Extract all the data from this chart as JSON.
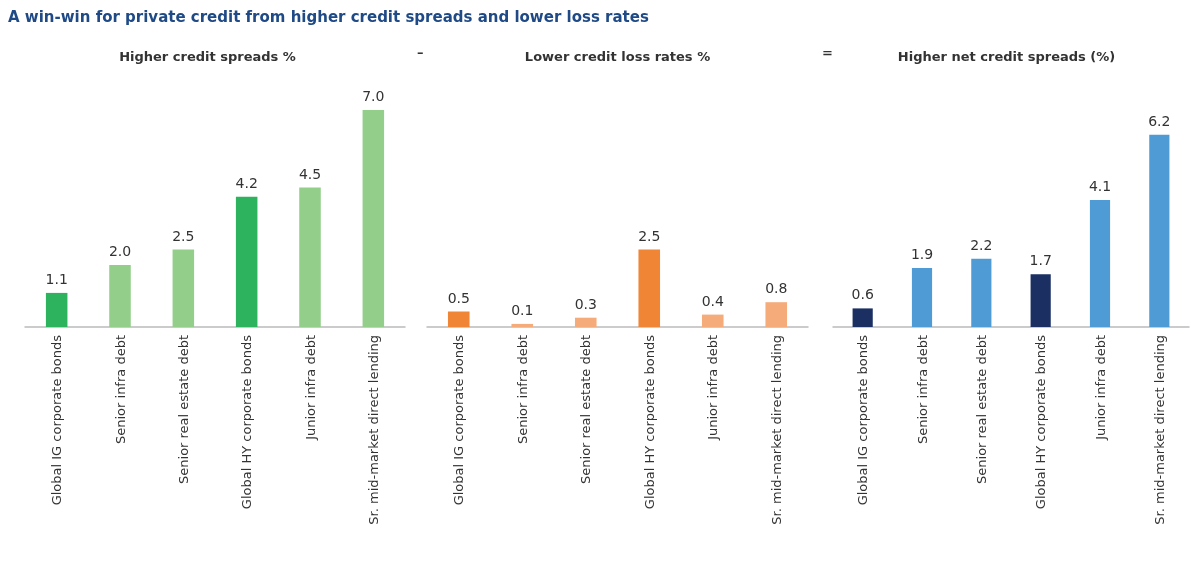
{
  "chart_data": [
    {
      "type": "bar",
      "title": "A win-win for private credit from higher credit spreads and lower loss rates",
      "subtitle": "Higher credit spreads %",
      "categories": [
        "Global IG corporate bonds",
        "Senior infra debt",
        "Senior real estate debt",
        "Global HY corporate bonds",
        "Junior infra debt",
        "Sr. mid-market direct lending"
      ],
      "values": [
        1.1,
        2.0,
        2.5,
        4.2,
        4.5,
        7.0
      ],
      "value_labels": [
        "1.1",
        "2.0",
        "2.5",
        "4.2",
        "4.5",
        "7.0"
      ],
      "colors": [
        "#2db35d",
        "#93cf8a",
        "#93cf8a",
        "#2db35d",
        "#93cf8a",
        "#93cf8a"
      ],
      "tick_labels": "x"
    },
    {
      "type": "bar",
      "subtitle": "Lower credit loss rates %",
      "annotations": [
        "–"
      ],
      "categories": [
        "Global IG corporate bonds",
        "Senior infra debt",
        "Senior real estate debt",
        "Global HY corporate bonds",
        "Junior infra debt",
        "Sr. mid-market direct lending"
      ],
      "values": [
        0.5,
        0.1,
        0.3,
        2.5,
        0.4,
        0.8
      ],
      "value_labels": [
        "0.5",
        "0.1",
        "0.3",
        "2.5",
        "0.4",
        "0.8"
      ],
      "colors": [
        "#f08536",
        "#f5ab7a",
        "#f5ab7a",
        "#f08536",
        "#f5ab7a",
        "#f5ab7a"
      ],
      "tick_labels": "x"
    },
    {
      "type": "bar",
      "subtitle": "Higher net credit spreads (%)",
      "annotations": [
        "="
      ],
      "categories": [
        "Global IG corporate bonds",
        "Senior infra debt",
        "Senior real estate debt",
        "Global HY corporate bonds",
        "Junior infra debt",
        "Sr. mid-market direct lending"
      ],
      "values": [
        0.6,
        1.9,
        2.2,
        1.7,
        4.1,
        6.2
      ],
      "value_labels": [
        "0.6",
        "1.9",
        "2.2",
        "1.7",
        "4.1",
        "6.2"
      ],
      "colors": [
        "#1b2f63",
        "#4e9bd6",
        "#4e9bd6",
        "#1b2f63",
        "#4e9bd6",
        "#4e9bd6"
      ],
      "tick_labels": "x"
    }
  ]
}
